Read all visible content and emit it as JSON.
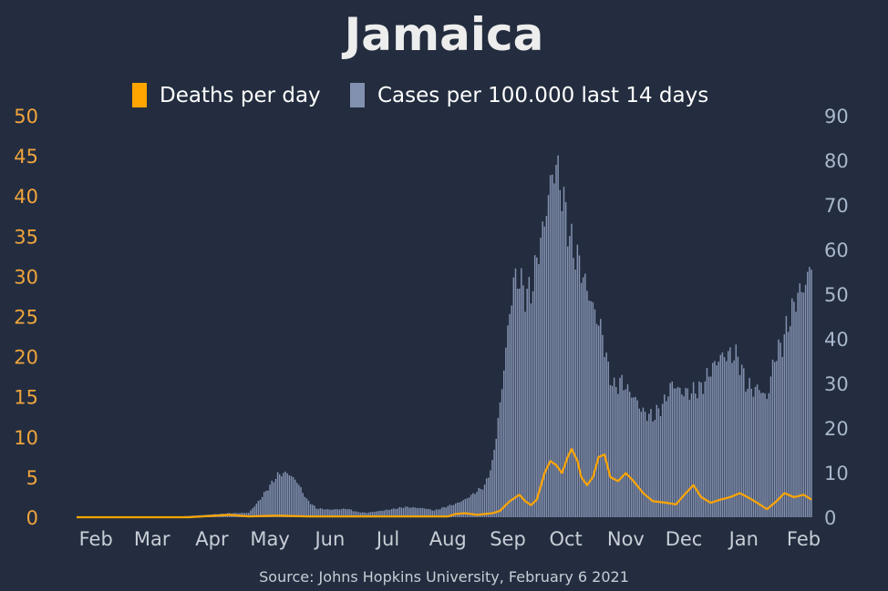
{
  "colors": {
    "background": "#232d3f",
    "deaths": "#ffa500",
    "cases": "#8391b0",
    "left_axis_text": "#f0a43c",
    "right_axis_text": "#a8b6cc",
    "x_axis_text": "#c8cdd6",
    "title": "#ededed",
    "legend_text": "#ffffff",
    "source_text": "#c8cdd6"
  },
  "chart_data": {
    "type": "bar",
    "title": "Jamaica",
    "source": "Source: Johns Hopkins University, February 6 2021",
    "x_start": "2020-01-22",
    "x_end": "2021-02-05",
    "x_ticks": [
      {
        "date": "2020-02-01",
        "label": "Feb"
      },
      {
        "date": "2020-03-01",
        "label": "Mar"
      },
      {
        "date": "2020-04-01",
        "label": "Apr"
      },
      {
        "date": "2020-05-01",
        "label": "May"
      },
      {
        "date": "2020-06-01",
        "label": "Jun"
      },
      {
        "date": "2020-07-01",
        "label": "Jul"
      },
      {
        "date": "2020-08-01",
        "label": "Aug"
      },
      {
        "date": "2020-09-01",
        "label": "Sep"
      },
      {
        "date": "2020-10-01",
        "label": "Oct"
      },
      {
        "date": "2020-11-01",
        "label": "Nov"
      },
      {
        "date": "2020-12-01",
        "label": "Dec"
      },
      {
        "date": "2021-01-01",
        "label": "Jan"
      },
      {
        "date": "2021-02-01",
        "label": "Feb"
      }
    ],
    "y_left": {
      "min": 0,
      "max": 50,
      "ticks": [
        0,
        5,
        10,
        15,
        20,
        25,
        30,
        35,
        40,
        45,
        50
      ]
    },
    "y_right": {
      "min": 0,
      "max": 90,
      "ticks": [
        0,
        10,
        20,
        30,
        40,
        50,
        60,
        70,
        80,
        90
      ]
    },
    "legend": {
      "position": "top-center",
      "deaths_label": "Deaths per day",
      "cases_label": "Cases per 100.000 last 14 days"
    },
    "series": [
      {
        "name": "Cases per 100.000 last 14 days",
        "kind": "bar",
        "axis": "right",
        "points": [
          [
            "2020-01-22",
            0
          ],
          [
            "2020-03-10",
            0
          ],
          [
            "2020-03-20",
            0.3
          ],
          [
            "2020-03-31",
            0.6
          ],
          [
            "2020-04-10",
            0.9
          ],
          [
            "2020-04-20",
            1.0
          ],
          [
            "2020-04-25",
            3.5
          ],
          [
            "2020-04-30",
            6.5
          ],
          [
            "2020-05-05",
            9.5
          ],
          [
            "2020-05-10",
            10.0
          ],
          [
            "2020-05-15",
            8.0
          ],
          [
            "2020-05-20",
            4.0
          ],
          [
            "2020-05-25",
            2.0
          ],
          [
            "2020-06-01",
            1.7
          ],
          [
            "2020-06-10",
            1.9
          ],
          [
            "2020-06-15",
            1.2
          ],
          [
            "2020-06-20",
            1.0
          ],
          [
            "2020-06-30",
            1.6
          ],
          [
            "2020-07-10",
            2.3
          ],
          [
            "2020-07-20",
            2.0
          ],
          [
            "2020-07-25",
            1.5
          ],
          [
            "2020-08-01",
            2.5
          ],
          [
            "2020-08-05",
            3.0
          ],
          [
            "2020-08-10",
            4.0
          ],
          [
            "2020-08-15",
            5.5
          ],
          [
            "2020-08-20",
            7.0
          ],
          [
            "2020-08-24",
            12.0
          ],
          [
            "2020-08-28",
            25.0
          ],
          [
            "2020-09-01",
            42.0
          ],
          [
            "2020-09-04",
            53.0
          ],
          [
            "2020-09-07",
            53.5
          ],
          [
            "2020-09-10",
            50.0
          ],
          [
            "2020-09-13",
            50.5
          ],
          [
            "2020-09-17",
            60.0
          ],
          [
            "2020-09-20",
            66.0
          ],
          [
            "2020-09-23",
            75.0
          ],
          [
            "2020-09-26",
            79.0
          ],
          [
            "2020-09-28",
            75.0
          ],
          [
            "2020-10-01",
            68.0
          ],
          [
            "2020-10-04",
            61.0
          ],
          [
            "2020-10-08",
            57.0
          ],
          [
            "2020-10-12",
            51.0
          ],
          [
            "2020-10-16",
            46.0
          ],
          [
            "2020-10-20",
            41.0
          ],
          [
            "2020-10-23",
            33.0
          ],
          [
            "2020-10-26",
            29.0
          ],
          [
            "2020-10-30",
            30.5
          ],
          [
            "2020-11-03",
            28.0
          ],
          [
            "2020-11-06",
            26.5
          ],
          [
            "2020-11-10",
            23.5
          ],
          [
            "2020-11-15",
            22.5
          ],
          [
            "2020-11-20",
            25.0
          ],
          [
            "2020-11-25",
            30.0
          ],
          [
            "2020-11-30",
            28.0
          ],
          [
            "2020-12-05",
            28.0
          ],
          [
            "2020-12-10",
            29.0
          ],
          [
            "2020-12-15",
            33.0
          ],
          [
            "2020-12-20",
            36.0
          ],
          [
            "2020-12-25",
            36.5
          ],
          [
            "2020-12-29",
            36.0
          ],
          [
            "2021-01-02",
            30.0
          ],
          [
            "2021-01-06",
            28.5
          ],
          [
            "2021-01-09",
            29.0
          ],
          [
            "2021-01-13",
            26.5
          ],
          [
            "2021-01-17",
            36.0
          ],
          [
            "2021-01-21",
            39.0
          ],
          [
            "2021-01-25",
            45.0
          ],
          [
            "2021-01-29",
            50.0
          ],
          [
            "2021-02-02",
            52.0
          ],
          [
            "2021-02-05",
            57.5
          ]
        ]
      },
      {
        "name": "Deaths per day",
        "kind": "line",
        "axis": "left",
        "points": [
          [
            "2020-01-22",
            0
          ],
          [
            "2020-03-20",
            0
          ],
          [
            "2020-04-10",
            0.3
          ],
          [
            "2020-04-20",
            0.1
          ],
          [
            "2020-05-05",
            0.2
          ],
          [
            "2020-05-20",
            0.1
          ],
          [
            "2020-06-10",
            0.1
          ],
          [
            "2020-07-10",
            0.1
          ],
          [
            "2020-08-01",
            0.1
          ],
          [
            "2020-08-05",
            0.4
          ],
          [
            "2020-08-10",
            0.5
          ],
          [
            "2020-08-16",
            0.3
          ],
          [
            "2020-08-24",
            0.5
          ],
          [
            "2020-08-28",
            0.8
          ],
          [
            "2020-09-02",
            2.0
          ],
          [
            "2020-09-07",
            2.8
          ],
          [
            "2020-09-10",
            2.0
          ],
          [
            "2020-09-13",
            1.5
          ],
          [
            "2020-09-16",
            2.2
          ],
          [
            "2020-09-20",
            5.5
          ],
          [
            "2020-09-23",
            7.0
          ],
          [
            "2020-09-26",
            6.5
          ],
          [
            "2020-09-29",
            5.5
          ],
          [
            "2020-10-02",
            7.5
          ],
          [
            "2020-10-04",
            8.5
          ],
          [
            "2020-10-07",
            7.0
          ],
          [
            "2020-10-09",
            5.0
          ],
          [
            "2020-10-12",
            4.0
          ],
          [
            "2020-10-15",
            5.0
          ],
          [
            "2020-10-18",
            7.5
          ],
          [
            "2020-10-21",
            7.8
          ],
          [
            "2020-10-24",
            5.0
          ],
          [
            "2020-10-28",
            4.5
          ],
          [
            "2020-11-01",
            5.5
          ],
          [
            "2020-11-05",
            4.5
          ],
          [
            "2020-11-10",
            3.0
          ],
          [
            "2020-11-15",
            2.0
          ],
          [
            "2020-11-22",
            1.8
          ],
          [
            "2020-11-27",
            1.6
          ],
          [
            "2020-12-02",
            3.0
          ],
          [
            "2020-12-06",
            4.0
          ],
          [
            "2020-12-10",
            2.5
          ],
          [
            "2020-12-15",
            1.8
          ],
          [
            "2020-12-20",
            2.2
          ],
          [
            "2020-12-25",
            2.5
          ],
          [
            "2020-12-30",
            3.0
          ],
          [
            "2021-01-03",
            2.5
          ],
          [
            "2021-01-08",
            1.8
          ],
          [
            "2021-01-13",
            1.0
          ],
          [
            "2021-01-18",
            2.0
          ],
          [
            "2021-01-22",
            3.0
          ],
          [
            "2021-01-27",
            2.5
          ],
          [
            "2021-02-01",
            2.8
          ],
          [
            "2021-02-05",
            2.2
          ]
        ]
      }
    ]
  }
}
